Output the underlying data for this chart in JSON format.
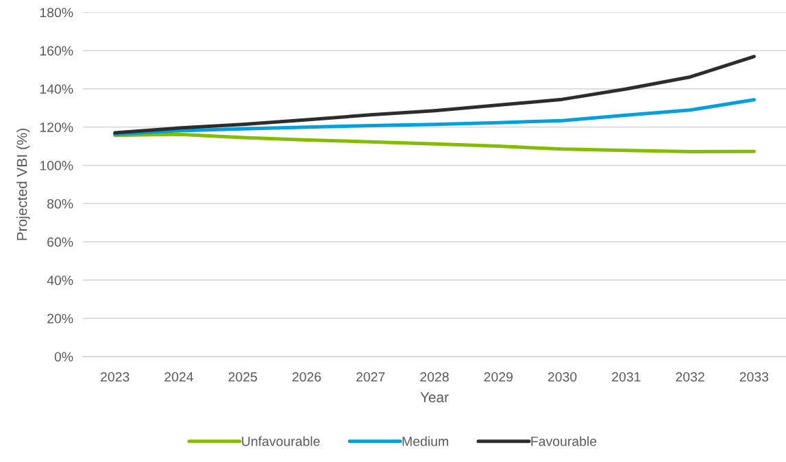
{
  "chart_data": {
    "type": "line",
    "xlabel": "Year",
    "ylabel": "Projected VBI (%)",
    "categories": [
      "2023",
      "2024",
      "2025",
      "2026",
      "2027",
      "2028",
      "2029",
      "2030",
      "2031",
      "2032",
      "2033"
    ],
    "series": [
      {
        "name": "Unfavourable",
        "color": "#84bd00",
        "values": [
          115.7,
          116.2,
          114.5,
          113.3,
          112.3,
          111.2,
          110.0,
          108.5,
          107.8,
          107.2,
          107.3
        ]
      },
      {
        "name": "Medium",
        "color": "#00a0dc",
        "values": [
          116.3,
          118.1,
          119.1,
          120.0,
          120.8,
          121.4,
          122.3,
          123.4,
          126.2,
          128.9,
          134.3
        ]
      },
      {
        "name": "Favourable",
        "color": "#2d2d2d",
        "values": [
          117.0,
          119.5,
          121.4,
          123.8,
          126.4,
          128.6,
          131.5,
          134.5,
          139.9,
          146.2,
          156.9
        ]
      }
    ],
    "ylim": [
      0,
      180
    ],
    "yticks": [
      {
        "value": 0,
        "label": "0%"
      },
      {
        "value": 20,
        "label": "20%"
      },
      {
        "value": 40,
        "label": "40%"
      },
      {
        "value": 60,
        "label": "60%"
      },
      {
        "value": 80,
        "label": "80%"
      },
      {
        "value": 100,
        "label": "100%"
      },
      {
        "value": 120,
        "label": "120%"
      },
      {
        "value": 140,
        "label": "140%"
      },
      {
        "value": 160,
        "label": "160%"
      },
      {
        "value": 180,
        "label": "180%"
      }
    ],
    "grid": "y",
    "legend": "bottom",
    "marker": "none",
    "line_style": "solid"
  }
}
